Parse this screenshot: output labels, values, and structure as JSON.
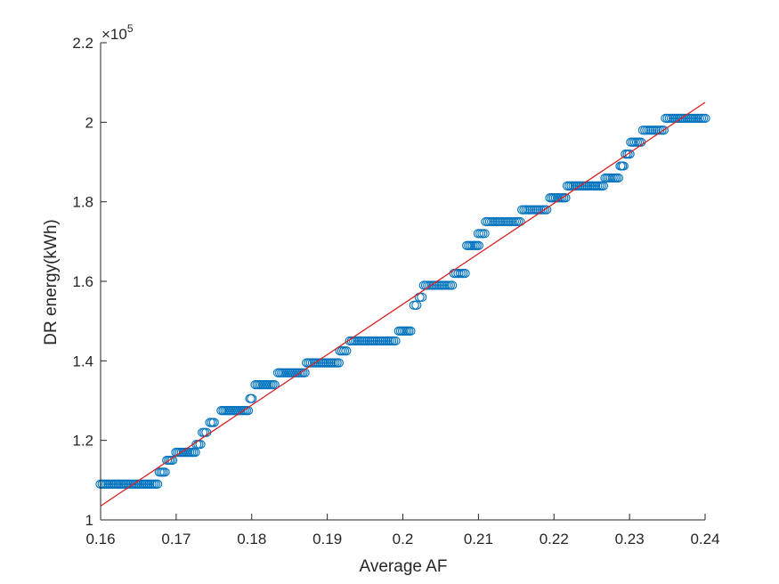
{
  "chart_data": {
    "type": "scatter",
    "xlabel": "Average AF",
    "ylabel": "DR energy(kWh)",
    "xlim": [
      0.16,
      0.24
    ],
    "ylim": [
      100000,
      220000
    ],
    "y_exponent_label": "×10",
    "y_exponent_power": "5",
    "x_ticks": [
      0.16,
      0.17,
      0.18,
      0.19,
      0.2,
      0.21,
      0.22,
      0.23,
      0.24
    ],
    "x_tick_labels": [
      "0.16",
      "0.17",
      "0.18",
      "0.19",
      "0.2",
      "0.21",
      "0.22",
      "0.23",
      "0.24"
    ],
    "y_ticks": [
      100000,
      120000,
      140000,
      160000,
      180000,
      200000,
      220000
    ],
    "y_tick_labels": [
      "1",
      "1.2",
      "1.4",
      "1.6",
      "1.8",
      "2",
      "2.2"
    ],
    "grid": false,
    "marker_color": "#0072BD",
    "fit_color": "#D92121",
    "scatter_segments": [
      {
        "x_start": 0.16,
        "x_end": 0.1675,
        "y": 109000
      },
      {
        "x_start": 0.1678,
        "x_end": 0.1685,
        "y": 112000
      },
      {
        "x_start": 0.1688,
        "x_end": 0.1695,
        "y": 115000
      },
      {
        "x_start": 0.17,
        "x_end": 0.1725,
        "y": 117000
      },
      {
        "x_start": 0.1727,
        "x_end": 0.1732,
        "y": 119000
      },
      {
        "x_start": 0.1735,
        "x_end": 0.174,
        "y": 122000
      },
      {
        "x_start": 0.1745,
        "x_end": 0.175,
        "y": 124500
      },
      {
        "x_start": 0.176,
        "x_end": 0.1795,
        "y": 127500
      },
      {
        "x_start": 0.1798,
        "x_end": 0.18,
        "y": 130500
      },
      {
        "x_start": 0.1805,
        "x_end": 0.183,
        "y": 134000
      },
      {
        "x_start": 0.1835,
        "x_end": 0.187,
        "y": 137000
      },
      {
        "x_start": 0.1873,
        "x_end": 0.1915,
        "y": 139500
      },
      {
        "x_start": 0.1917,
        "x_end": 0.1925,
        "y": 142500
      },
      {
        "x_start": 0.193,
        "x_end": 0.199,
        "y": 145000
      },
      {
        "x_start": 0.1995,
        "x_end": 0.201,
        "y": 147500
      },
      {
        "x_start": 0.2015,
        "x_end": 0.2018,
        "y": 154000
      },
      {
        "x_start": 0.2022,
        "x_end": 0.2025,
        "y": 156000
      },
      {
        "x_start": 0.2028,
        "x_end": 0.2065,
        "y": 159000
      },
      {
        "x_start": 0.2068,
        "x_end": 0.2082,
        "y": 162000
      },
      {
        "x_start": 0.2085,
        "x_end": 0.21,
        "y": 169000
      },
      {
        "x_start": 0.21,
        "x_end": 0.2108,
        "y": 172000
      },
      {
        "x_start": 0.211,
        "x_end": 0.2155,
        "y": 175000
      },
      {
        "x_start": 0.2158,
        "x_end": 0.219,
        "y": 178000
      },
      {
        "x_start": 0.2195,
        "x_end": 0.2215,
        "y": 181000
      },
      {
        "x_start": 0.2218,
        "x_end": 0.2265,
        "y": 184000
      },
      {
        "x_start": 0.2268,
        "x_end": 0.2285,
        "y": 186000
      },
      {
        "x_start": 0.2288,
        "x_end": 0.2292,
        "y": 189000
      },
      {
        "x_start": 0.2295,
        "x_end": 0.23,
        "y": 192000
      },
      {
        "x_start": 0.2302,
        "x_end": 0.2315,
        "y": 195000
      },
      {
        "x_start": 0.2318,
        "x_end": 0.2345,
        "y": 198000
      },
      {
        "x_start": 0.2348,
        "x_end": 0.24,
        "y": 201000
      }
    ],
    "fit_line": {
      "x": [
        0.16,
        0.24
      ],
      "y": [
        103500,
        205000
      ]
    }
  }
}
